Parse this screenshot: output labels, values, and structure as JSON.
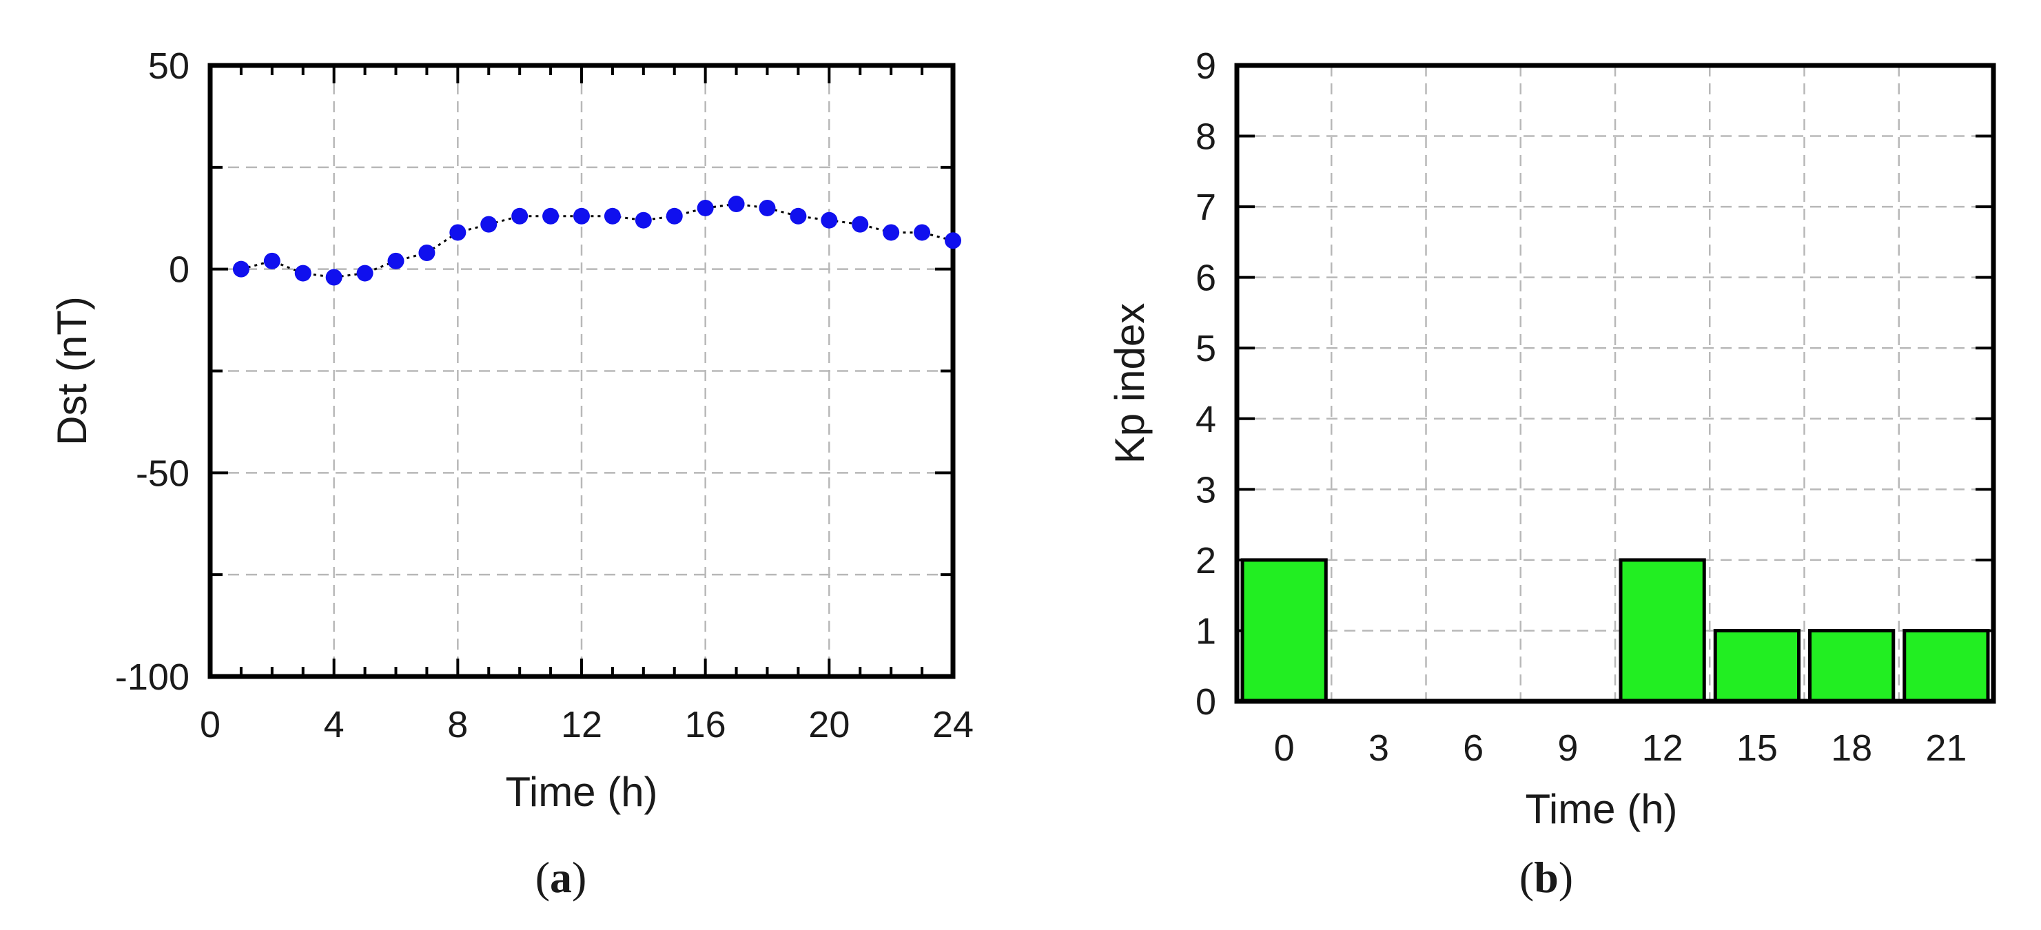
{
  "chart_data": [
    {
      "panel": "(a)",
      "type": "scatter",
      "xlabel": "Time (h)",
      "ylabel": "Dst (nT)",
      "xlim": [
        0,
        24
      ],
      "ylim": [
        -100,
        50
      ],
      "xticks": [
        "0",
        "4",
        "8",
        "12",
        "16",
        "20",
        "24"
      ],
      "yticks": [
        "50",
        "0",
        "-50",
        "-100"
      ],
      "grid": true,
      "marker_color": "#1010ee",
      "connector": "dotted black line",
      "series": [
        {
          "x": [
            1,
            2,
            3,
            4,
            5,
            6,
            7,
            8,
            9,
            10,
            11,
            12,
            13,
            14,
            15,
            16,
            17,
            18,
            19,
            20,
            21,
            22,
            23,
            24
          ],
          "values": [
            0,
            2,
            -1,
            -2,
            -1,
            2,
            4,
            9,
            11,
            13,
            13,
            13,
            13,
            12,
            13,
            15,
            16,
            15,
            13,
            12,
            11,
            9,
            9,
            7
          ]
        }
      ]
    },
    {
      "panel": "(b)",
      "type": "bar",
      "xlabel": "Time (h)",
      "ylabel": "Kp index",
      "ylim": [
        0,
        9
      ],
      "categories": [
        "0",
        "3",
        "6",
        "9",
        "12",
        "15",
        "18",
        "21"
      ],
      "values": [
        2,
        0,
        0,
        0,
        2,
        1,
        1,
        1
      ],
      "yticks": [
        "0",
        "1",
        "2",
        "3",
        "4",
        "5",
        "6",
        "7",
        "8",
        "9"
      ],
      "grid": true,
      "bar_color": "#22ee22"
    }
  ]
}
